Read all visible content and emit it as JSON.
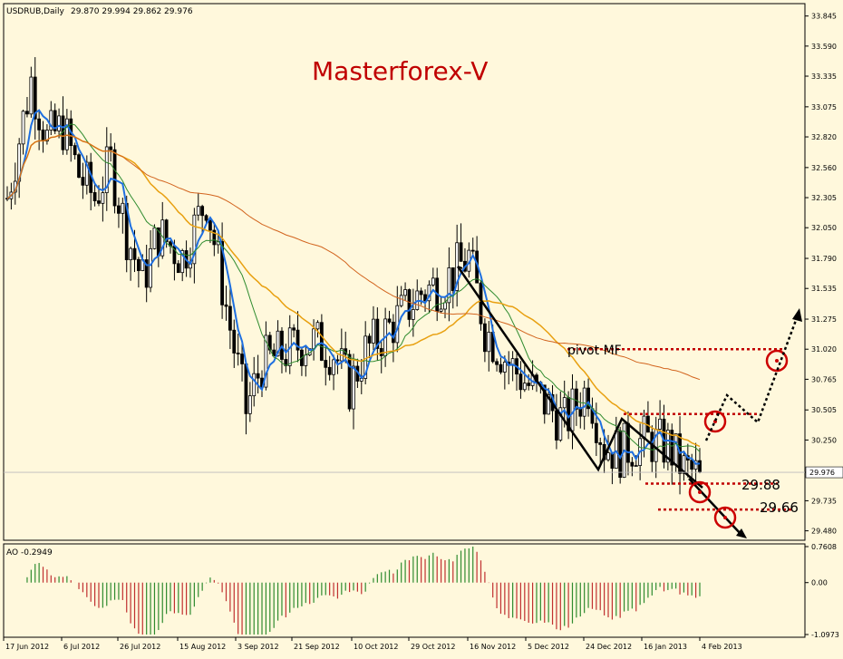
{
  "header": {
    "symbol": "USDRUB,Daily",
    "ohlc": "29.870 29.994 29.862 29.976"
  },
  "watermark": "Masterforex-V",
  "annotations": {
    "pivot_label": "pivot MF",
    "target_1": "29.88",
    "target_2": "29.66"
  },
  "current_price_label": "29.976",
  "indicator": {
    "name": "AO",
    "value": "-0.2949",
    "label": "AO -0.2949",
    "ticks": [
      "0.7608",
      "0.00",
      "-1.0973"
    ]
  },
  "colors": {
    "background": "#fff8dc",
    "candles": "#000000",
    "ma_fast": "#1e6fe0",
    "ma_green": "#2e8b2e",
    "ma_orange": "#e8a010",
    "ma_red": "#d2641e",
    "ao_up": "#2e8b2e",
    "ao_down": "#c03030",
    "levels": "#c00000",
    "watermark": "#c00000"
  },
  "chart_data": {
    "type": "candlestick",
    "symbol": "USDRUB",
    "timeframe": "Daily",
    "price_ticks": [
      "33.845",
      "33.590",
      "33.335",
      "33.075",
      "32.820",
      "32.560",
      "32.305",
      "32.050",
      "31.790",
      "31.535",
      "31.275",
      "31.020",
      "30.765",
      "30.505",
      "30.250",
      "29.976",
      "29.735",
      "29.480"
    ],
    "date_ticks": [
      "17 Jun 2012",
      "6 Jul 2012",
      "26 Jul 2012",
      "15 Aug 2012",
      "3 Sep 2012",
      "21 Sep 2012",
      "10 Oct 2012",
      "29 Oct 2012",
      "16 Nov 2012",
      "5 Dec 2012",
      "24 Dec 2012",
      "16 Jan 2013",
      "4 Feb 2013"
    ],
    "ylim": [
      29.4,
      33.95
    ],
    "last_close": 29.976,
    "series": [
      {
        "name": "price_trend",
        "points": [
          [
            0,
            32.3
          ],
          [
            6,
            33.3
          ],
          [
            10,
            32.8
          ],
          [
            14,
            32.9
          ],
          [
            18,
            32.5
          ],
          [
            22,
            32.3
          ],
          [
            26,
            32.6
          ],
          [
            30,
            32.0
          ],
          [
            34,
            31.6
          ],
          [
            38,
            32.0
          ],
          [
            44,
            31.8
          ],
          [
            50,
            32.3
          ],
          [
            56,
            31.2
          ],
          [
            60,
            30.5
          ],
          [
            64,
            30.9
          ],
          [
            70,
            31.0
          ],
          [
            76,
            31.1
          ],
          [
            82,
            31.0
          ],
          [
            86,
            30.7
          ],
          [
            90,
            31.0
          ],
          [
            96,
            31.2
          ],
          [
            104,
            31.5
          ],
          [
            110,
            31.6
          ],
          [
            116,
            31.8
          ],
          [
            120,
            31.2
          ],
          [
            126,
            30.9
          ],
          [
            134,
            30.6
          ],
          [
            140,
            30.4
          ],
          [
            146,
            30.7
          ],
          [
            150,
            30.2
          ],
          [
            154,
            30.15
          ],
          [
            160,
            30.25
          ],
          [
            166,
            30.2
          ],
          [
            170,
            30.0
          ],
          [
            174,
            29.95
          ]
        ]
      }
    ],
    "levels": [
      {
        "label": "pivot MF",
        "value": 31.02
      },
      {
        "value": 30.47
      },
      {
        "label": "29.88",
        "value": 29.88
      },
      {
        "label": "29.66",
        "value": 29.66
      }
    ]
  }
}
